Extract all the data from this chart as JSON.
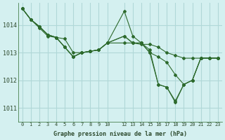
{
  "title": "Graphe pression niveau de la mer (hPa)",
  "bg_color": "#d4f0f0",
  "grid_color": "#b0d8d8",
  "line_color": "#2d6a2d",
  "x_ticks": [
    0,
    1,
    2,
    3,
    4,
    5,
    6,
    7,
    8,
    9,
    10,
    12,
    13,
    14,
    15,
    16,
    17,
    18,
    19,
    20,
    21,
    22,
    23
  ],
  "x_tick_labels": [
    "0",
    "1",
    "2",
    "3",
    "4",
    "5",
    "6",
    "7",
    "8",
    "9",
    "10",
    "12",
    "13",
    "14",
    "15",
    "16",
    "17",
    "18",
    "19",
    "20",
    "21",
    "22",
    "23"
  ],
  "ylim": [
    1010.5,
    1014.8
  ],
  "yticks": [
    1011,
    1012,
    1013,
    1014
  ],
  "series": [
    [
      1014.6,
      1014.2,
      1013.9,
      1013.6,
      1013.55,
      1013.5,
      1013.0,
      1013.0,
      1013.05,
      1013.1,
      1013.35,
      1013.35,
      1013.35,
      1013.3,
      1013.3,
      1013.2,
      1013.0,
      1012.9,
      1012.8,
      1012.8,
      1012.8,
      1012.8,
      1012.8
    ],
    [
      1014.6,
      1014.2,
      1013.95,
      1013.65,
      1013.55,
      1013.2,
      1012.85,
      1013.0,
      1013.05,
      1013.1,
      1013.35,
      1014.5,
      1013.6,
      1013.35,
      1013.1,
      1011.85,
      1011.75,
      1011.2,
      1011.85,
      1012.0,
      1012.8,
      1012.8,
      1012.8
    ],
    [
      1014.6,
      1014.2,
      1013.95,
      1013.65,
      1013.55,
      1013.2,
      1012.85,
      1013.0,
      1013.05,
      1013.1,
      1013.35,
      1013.6,
      1013.35,
      1013.35,
      1013.0,
      1012.85,
      1012.65,
      1012.2,
      1011.85,
      1012.0,
      1012.8,
      1012.8,
      1012.8
    ],
    [
      1014.6,
      1014.2,
      1013.95,
      1013.65,
      1013.55,
      1013.2,
      1012.85,
      1013.0,
      1013.05,
      1013.1,
      1013.35,
      1013.6,
      1013.35,
      1013.35,
      1013.0,
      1011.85,
      1011.75,
      1011.25,
      1011.85,
      1012.0,
      1012.8,
      1012.8,
      1012.8
    ]
  ]
}
